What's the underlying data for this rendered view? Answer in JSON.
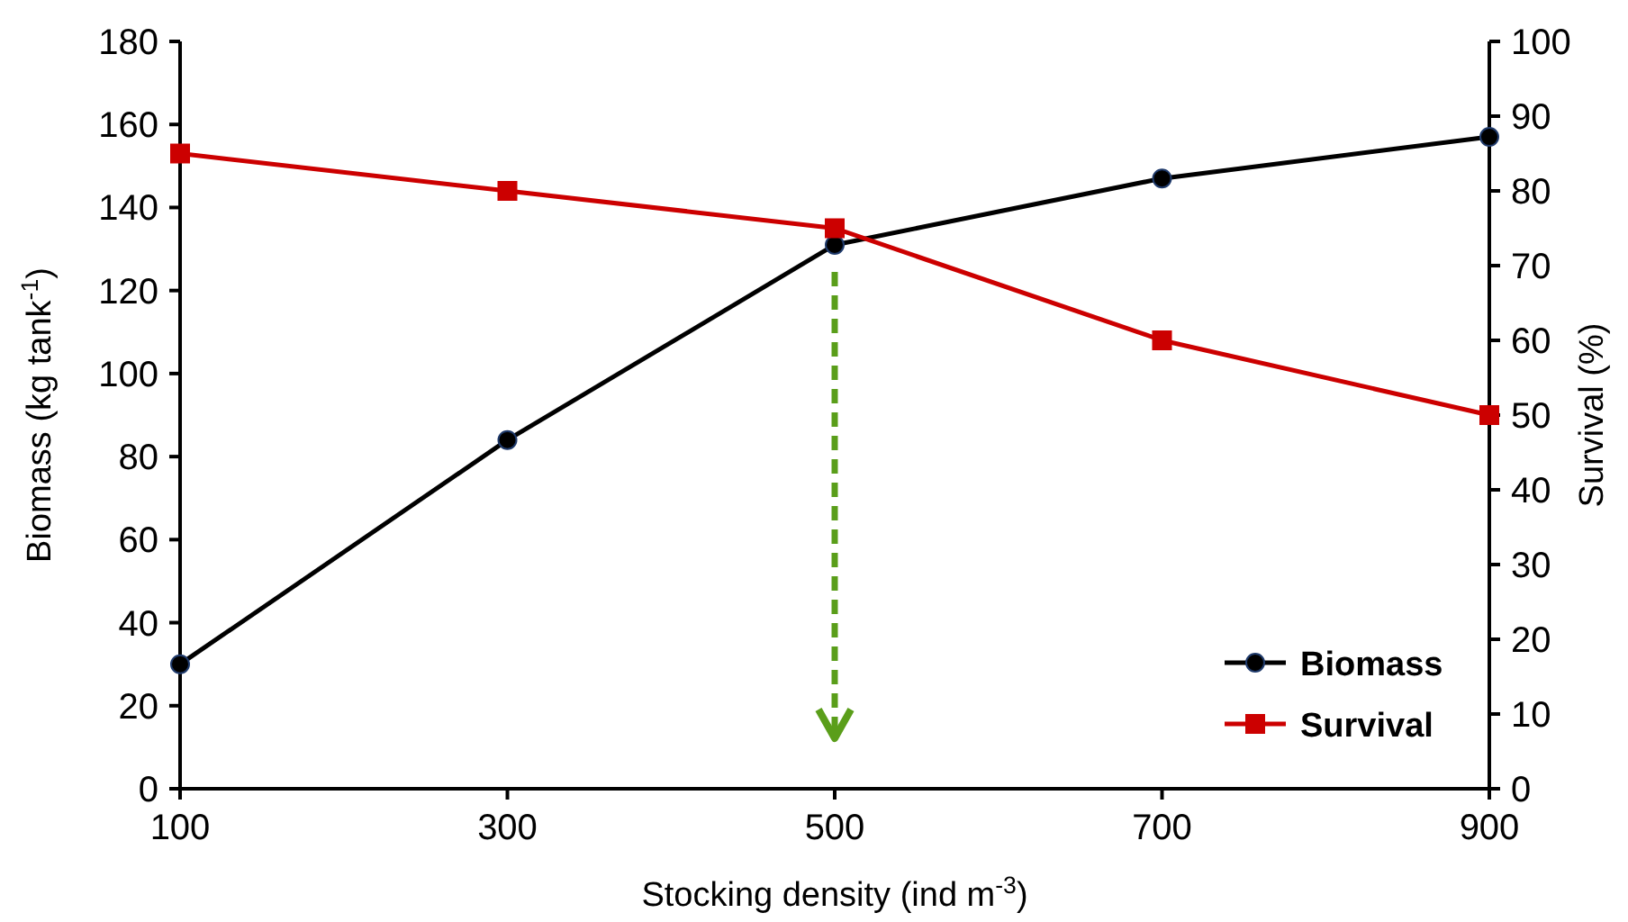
{
  "chart_data": {
    "type": "line",
    "xlabel": "Stocking density (ind m$^{-3}$)",
    "ylabel": "Biomass (kg tank$^{-1}$)",
    "y2label": "Survival (%)",
    "x": [
      100,
      300,
      500,
      700,
      900
    ],
    "xlim": [
      100,
      900
    ],
    "xticks": [
      100,
      300,
      500,
      700,
      900
    ],
    "ylim": [
      0,
      180
    ],
    "yticks": [
      0,
      20,
      40,
      60,
      80,
      100,
      120,
      140,
      160,
      180
    ],
    "y2lim": [
      0,
      100
    ],
    "y2ticks": [
      0,
      10,
      20,
      30,
      40,
      50,
      60,
      70,
      80,
      90,
      100
    ],
    "series": [
      {
        "name": "Biomass",
        "color": "#000000",
        "marker": "circle",
        "values": [
          30,
          84,
          131,
          147,
          157
        ]
      },
      {
        "name": "Survival",
        "color": "#cc0000",
        "marker": "square",
        "axis": "y2",
        "values": [
          85,
          80,
          75,
          60,
          50
        ]
      }
    ],
    "ref_lines": [
      {
        "axis": "x",
        "value": 500,
        "color": "#5a9e1a",
        "line_style": "dashed"
      }
    ],
    "legend": "bottom right",
    "grid": false
  }
}
